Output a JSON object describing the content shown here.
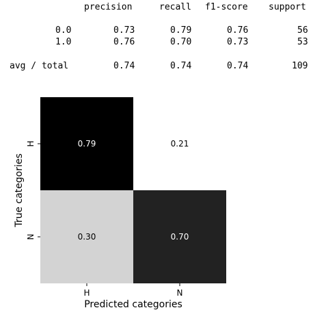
{
  "report": {
    "headers": [
      "precision",
      "recall",
      "f1-score",
      "support"
    ],
    "rows": [
      {
        "label": "0.0",
        "values": [
          "0.73",
          "0.79",
          "0.76",
          "56"
        ]
      },
      {
        "label": "1.0",
        "values": [
          "0.76",
          "0.70",
          "0.73",
          "53"
        ]
      }
    ],
    "total": {
      "label": "avg / total",
      "values": [
        "0.74",
        "0.74",
        "0.74",
        "109"
      ]
    }
  },
  "chart_data": {
    "type": "heatmap",
    "title": "",
    "xlabel": "Predicted categories",
    "ylabel": "True categories",
    "x_categories": [
      "H",
      "N"
    ],
    "y_categories": [
      "H",
      "N"
    ],
    "values": [
      [
        0.79,
        0.21
      ],
      [
        0.3,
        0.7
      ]
    ],
    "value_labels": [
      [
        "0.79",
        "0.21"
      ],
      [
        "0.30",
        "0.70"
      ]
    ],
    "colormap": "gray_r",
    "vmin": 0.0,
    "vmax": 1.0,
    "annot_color_dark_cells": "#ffffff",
    "annot_color_light_cells": "#000000",
    "colors": {
      "cell_0_0": "#000000",
      "cell_0_1": "#ffffff",
      "cell_1_0": "#d3d3d3",
      "cell_1_1": "#222222"
    }
  }
}
